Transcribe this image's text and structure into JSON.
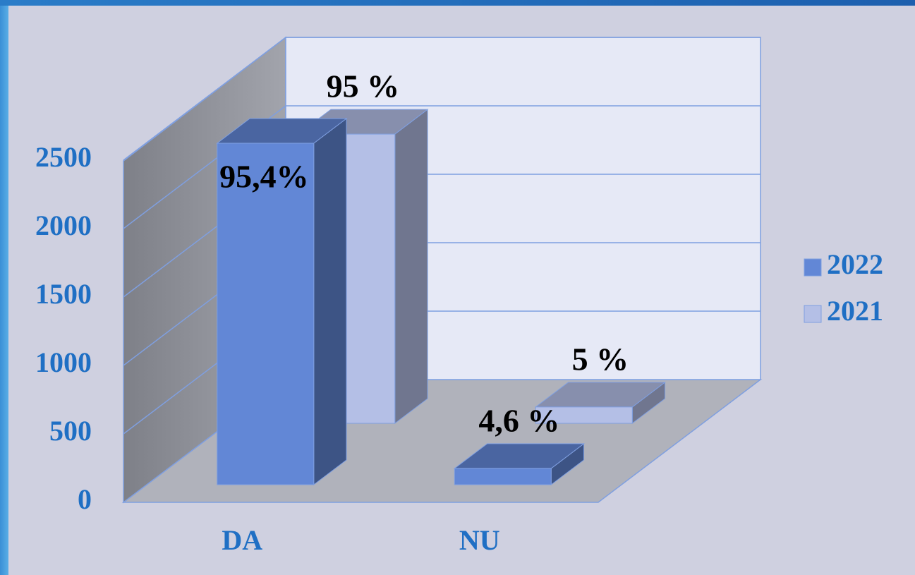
{
  "chart_data": {
    "type": "bar3d",
    "categories": [
      "DA",
      "NU"
    ],
    "series": [
      {
        "name": "2022",
        "color": "#6287d6",
        "values": [
          2495,
          119
        ],
        "data_labels": [
          "95,4%",
          "4,6 %"
        ]
      },
      {
        "name": "2021",
        "color": "#b4bfe6",
        "values": [
          2113,
          119
        ],
        "data_labels": [
          "95 %",
          "5 %"
        ]
      }
    ],
    "ylim": [
      0,
      2500
    ],
    "yticks": [
      0,
      500,
      1000,
      1500,
      2000,
      2500
    ],
    "grid": true,
    "legend": "right"
  }
}
